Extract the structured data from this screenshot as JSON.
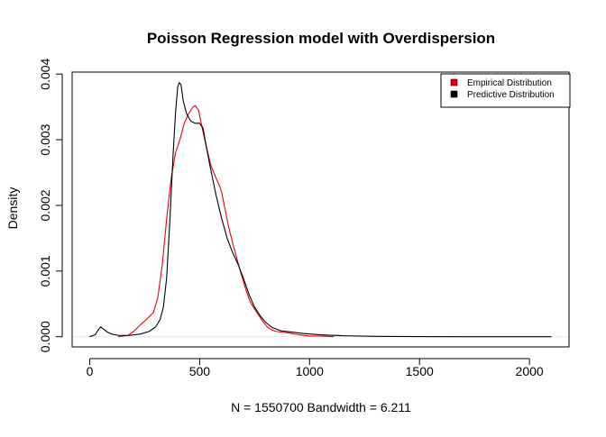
{
  "chart_data": {
    "type": "line",
    "title": "Poisson Regression model with Overdispersion",
    "xlabel": "N = 1550700   Bandwidth = 6.211",
    "ylabel": "Density",
    "xlim": [
      -80,
      2180
    ],
    "ylim": [
      -0.000155,
      0.00403
    ],
    "x_ticks": [
      0,
      500,
      1000,
      1500,
      2000
    ],
    "x_tick_labels": [
      "0",
      "500",
      "1000",
      "1500",
      "2000"
    ],
    "y_ticks": [
      0.0,
      0.001,
      0.002,
      0.003,
      0.004
    ],
    "y_tick_labels": [
      "0.000",
      "0.001",
      "0.002",
      "0.003",
      "0.004"
    ],
    "grid": false,
    "legend": {
      "position": "top-right",
      "entries": [
        {
          "label": "Empirical Distribution",
          "color": "#e8000b"
        },
        {
          "label": "Predictive Distribution",
          "color": "#000000"
        }
      ]
    },
    "series": [
      {
        "name": "Empirical Distribution",
        "color": "#e8000b",
        "points": [
          [
            130,
            0.0
          ],
          [
            175,
            2e-05
          ],
          [
            200,
            8e-05
          ],
          [
            230,
            0.00018
          ],
          [
            260,
            0.00027
          ],
          [
            290,
            0.00037
          ],
          [
            310,
            0.0006
          ],
          [
            330,
            0.0011
          ],
          [
            350,
            0.0018
          ],
          [
            370,
            0.0024
          ],
          [
            390,
            0.0028
          ],
          [
            410,
            0.003
          ],
          [
            430,
            0.00325
          ],
          [
            450,
            0.0034
          ],
          [
            470,
            0.0035
          ],
          [
            480,
            0.00352
          ],
          [
            495,
            0.00345
          ],
          [
            510,
            0.0032
          ],
          [
            530,
            0.0029
          ],
          [
            550,
            0.00262
          ],
          [
            570,
            0.00245
          ],
          [
            590,
            0.0023
          ],
          [
            600,
            0.0022
          ],
          [
            615,
            0.00195
          ],
          [
            630,
            0.0017
          ],
          [
            650,
            0.00143
          ],
          [
            670,
            0.00118
          ],
          [
            690,
            0.00094
          ],
          [
            710,
            0.00072
          ],
          [
            730,
            0.00053
          ],
          [
            750,
            0.00042
          ],
          [
            770,
            0.00032
          ],
          [
            790,
            0.00022
          ],
          [
            810,
            0.00014
          ],
          [
            830,
            0.0001
          ],
          [
            850,
            8e-05
          ],
          [
            900,
            6e-05
          ],
          [
            950,
            3e-05
          ],
          [
            1000,
            1e-05
          ],
          [
            1050,
            1e-05
          ],
          [
            1110,
            0.0
          ]
        ]
      },
      {
        "name": "Predictive Distribution",
        "color": "#000000",
        "points": [
          [
            0,
            0.0
          ],
          [
            25,
            3e-05
          ],
          [
            40,
            0.00011
          ],
          [
            50,
            0.00015
          ],
          [
            65,
            0.00011
          ],
          [
            80,
            7e-05
          ],
          [
            100,
            4e-05
          ],
          [
            130,
            2e-05
          ],
          [
            180,
            2e-05
          ],
          [
            230,
            4e-05
          ],
          [
            270,
            8e-05
          ],
          [
            300,
            0.00015
          ],
          [
            320,
            0.00026
          ],
          [
            335,
            0.00045
          ],
          [
            350,
            0.0009
          ],
          [
            365,
            0.0018
          ],
          [
            378,
            0.0027
          ],
          [
            390,
            0.0034
          ],
          [
            400,
            0.0038
          ],
          [
            407,
            0.00387
          ],
          [
            415,
            0.00384
          ],
          [
            425,
            0.0036
          ],
          [
            440,
            0.0034
          ],
          [
            460,
            0.00328
          ],
          [
            480,
            0.00325
          ],
          [
            500,
            0.00325
          ],
          [
            515,
            0.00318
          ],
          [
            530,
            0.0029
          ],
          [
            550,
            0.00255
          ],
          [
            575,
            0.00215
          ],
          [
            600,
            0.0018
          ],
          [
            625,
            0.0015
          ],
          [
            650,
            0.00128
          ],
          [
            675,
            0.0011
          ],
          [
            700,
            0.00088
          ],
          [
            725,
            0.00064
          ],
          [
            750,
            0.00045
          ],
          [
            775,
            0.00032
          ],
          [
            800,
            0.00022
          ],
          [
            830,
            0.00014
          ],
          [
            870,
            9e-05
          ],
          [
            920,
            7e-05
          ],
          [
            970,
            5e-05
          ],
          [
            1050,
            3e-05
          ],
          [
            1150,
            1.5e-05
          ],
          [
            1300,
            5e-06
          ],
          [
            1500,
            2e-06
          ],
          [
            1800,
            0.0
          ],
          [
            2100,
            0.0
          ]
        ]
      }
    ]
  }
}
